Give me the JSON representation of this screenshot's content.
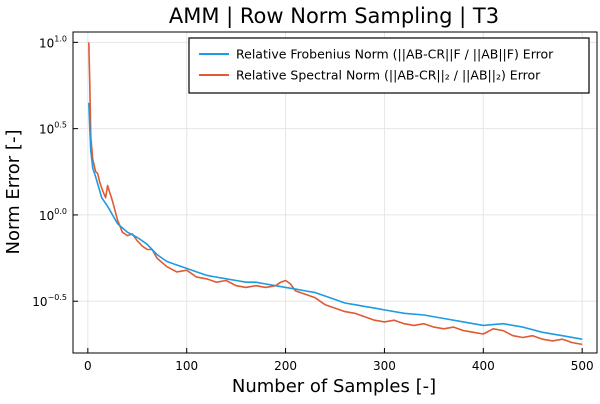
{
  "chart_data": {
    "type": "line",
    "title": "AMM | Row Norm Sampling | T3",
    "xlabel": "Number of Samples [-]",
    "ylabel": "Norm Error [-]",
    "xlim": [
      -15,
      515
    ],
    "ylim_log10": [
      -0.8,
      1.06
    ],
    "y_scale": "log10",
    "grid": true,
    "legend_position": "top-right",
    "x_ticks": [
      {
        "value": 0,
        "label": "0"
      },
      {
        "value": 100,
        "label": "100"
      },
      {
        "value": 200,
        "label": "200"
      },
      {
        "value": 300,
        "label": "300"
      },
      {
        "value": 400,
        "label": "400"
      },
      {
        "value": 500,
        "label": "500"
      }
    ],
    "y_ticks": [
      {
        "exp": 1.0,
        "base": "10",
        "sup": "1.0"
      },
      {
        "exp": 0.5,
        "base": "10",
        "sup": "0.5"
      },
      {
        "exp": 0.0,
        "base": "10",
        "sup": "0.0"
      },
      {
        "exp": -0.5,
        "base": "10",
        "sup": "−0.5"
      }
    ],
    "series": [
      {
        "name": "Relative Frobenius Norm (||AB-CR||F / ||AB||F) Error",
        "color": "#1f9be0",
        "x": [
          1,
          2,
          3,
          5,
          8,
          10,
          14,
          20,
          30,
          40,
          50,
          60,
          70,
          80,
          90,
          100,
          110,
          120,
          130,
          140,
          150,
          160,
          170,
          180,
          190,
          200,
          210,
          220,
          230,
          240,
          250,
          260,
          270,
          280,
          290,
          300,
          320,
          340,
          360,
          380,
          400,
          420,
          440,
          460,
          480,
          500
        ],
        "log10y": [
          0.65,
          0.5,
          0.37,
          0.27,
          0.22,
          0.18,
          0.1,
          0.05,
          -0.05,
          -0.1,
          -0.13,
          -0.17,
          -0.23,
          -0.27,
          -0.29,
          -0.31,
          -0.33,
          -0.35,
          -0.36,
          -0.37,
          -0.38,
          -0.39,
          -0.39,
          -0.4,
          -0.41,
          -0.42,
          -0.43,
          -0.44,
          -0.45,
          -0.47,
          -0.49,
          -0.51,
          -0.52,
          -0.53,
          -0.54,
          -0.55,
          -0.57,
          -0.58,
          -0.6,
          -0.62,
          -0.64,
          -0.63,
          -0.65,
          -0.68,
          -0.7,
          -0.72
        ]
      },
      {
        "name": "Relative Spectral Norm (||AB-CR||₂ / ||AB||₂) Error",
        "color": "#e05a32",
        "x": [
          1,
          2,
          3,
          5,
          8,
          10,
          12,
          15,
          18,
          20,
          25,
          30,
          35,
          40,
          45,
          50,
          55,
          60,
          65,
          70,
          80,
          90,
          100,
          110,
          120,
          130,
          140,
          150,
          160,
          170,
          180,
          190,
          195,
          200,
          205,
          210,
          220,
          230,
          240,
          250,
          260,
          270,
          280,
          290,
          300,
          310,
          320,
          330,
          340,
          350,
          360,
          370,
          380,
          390,
          400,
          410,
          420,
          430,
          440,
          450,
          460,
          470,
          480,
          490,
          500
        ],
        "log10y": [
          1.0,
          0.75,
          0.45,
          0.32,
          0.25,
          0.24,
          0.19,
          0.14,
          0.1,
          0.17,
          0.08,
          -0.03,
          -0.1,
          -0.12,
          -0.11,
          -0.15,
          -0.18,
          -0.2,
          -0.2,
          -0.25,
          -0.3,
          -0.33,
          -0.32,
          -0.36,
          -0.37,
          -0.39,
          -0.38,
          -0.41,
          -0.42,
          -0.41,
          -0.42,
          -0.41,
          -0.39,
          -0.38,
          -0.4,
          -0.44,
          -0.46,
          -0.48,
          -0.52,
          -0.54,
          -0.56,
          -0.57,
          -0.59,
          -0.61,
          -0.62,
          -0.61,
          -0.63,
          -0.64,
          -0.63,
          -0.65,
          -0.66,
          -0.65,
          -0.67,
          -0.68,
          -0.69,
          -0.66,
          -0.67,
          -0.7,
          -0.71,
          -0.7,
          -0.72,
          -0.73,
          -0.72,
          -0.74,
          -0.75
        ]
      }
    ]
  }
}
